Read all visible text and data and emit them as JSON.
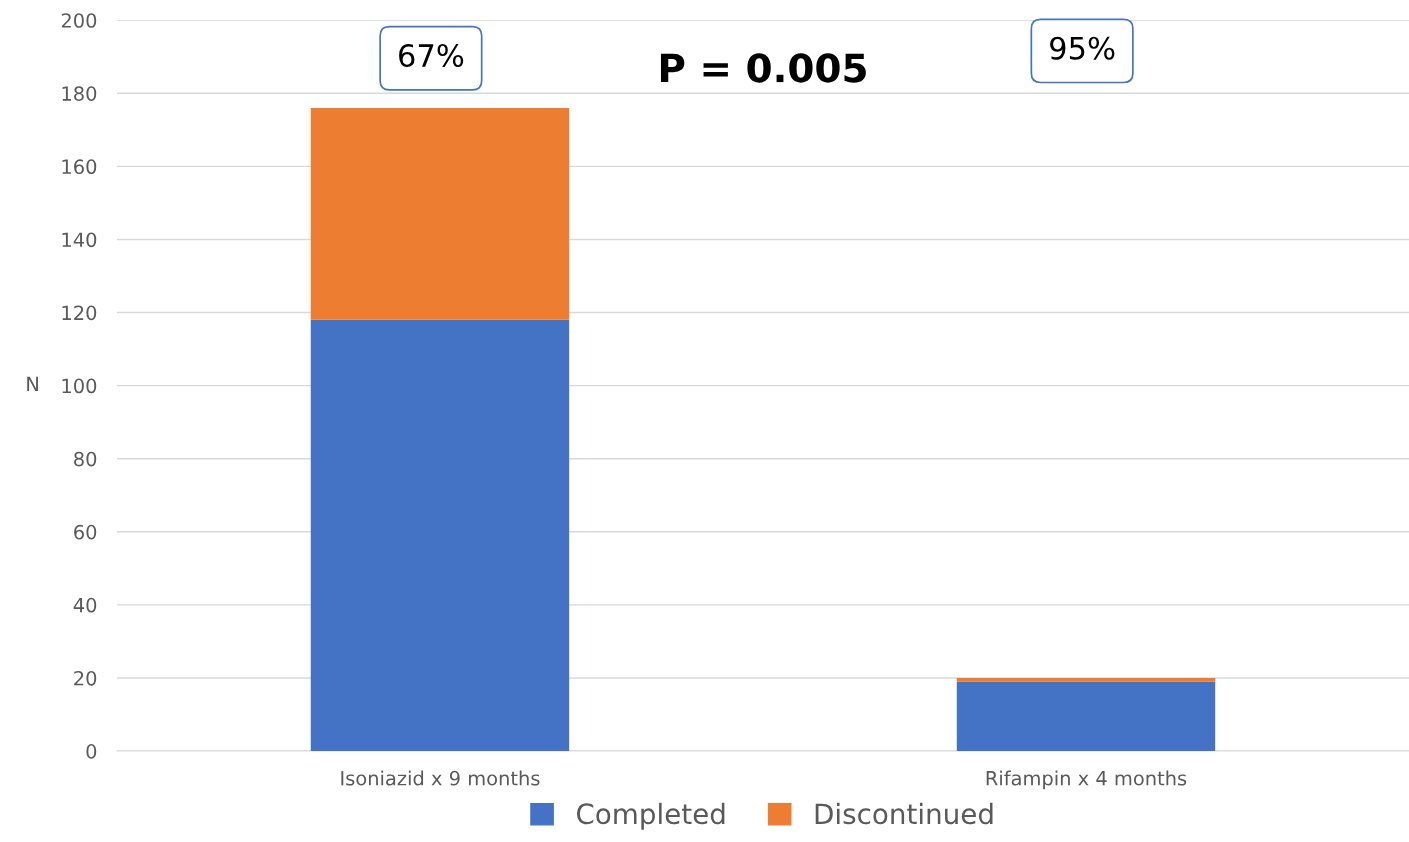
{
  "chart_data": {
    "type": "bar",
    "stacked": true,
    "ylabel": "N",
    "categories": [
      "Isoniazid x 9 months",
      "Rifampin x 4 months"
    ],
    "series": [
      {
        "name": "Completed",
        "color": "#4472c4",
        "values": [
          118,
          19
        ]
      },
      {
        "name": "Discontinued",
        "color": "#ed7d31",
        "values": [
          58,
          1
        ]
      }
    ],
    "ylim": [
      0,
      200
    ],
    "yticks": [
      0,
      20,
      40,
      60,
      80,
      100,
      120,
      140,
      160,
      180,
      200
    ],
    "grid": "y",
    "legend": "bottom",
    "annotations": [
      "67%",
      "95%",
      "P = 0.005"
    ]
  }
}
